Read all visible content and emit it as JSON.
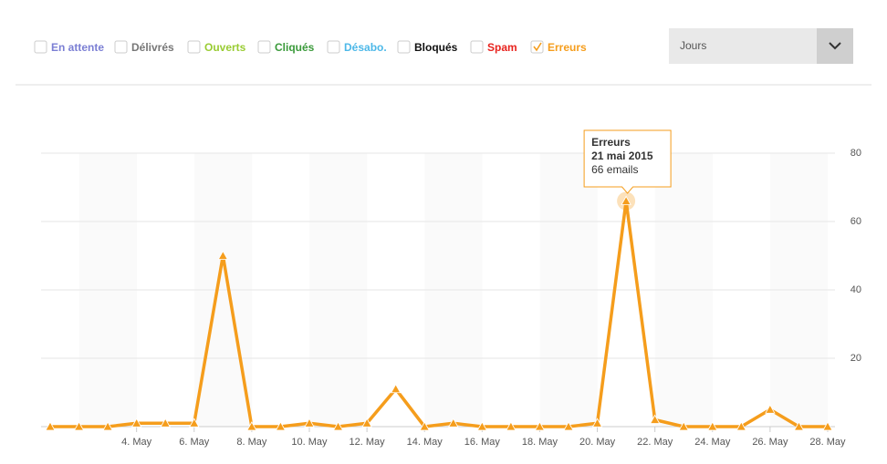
{
  "filters": [
    {
      "label": "En attente",
      "color": "#7b7fd4",
      "checked": false
    },
    {
      "label": "Délivrés",
      "color": "#777777",
      "checked": false
    },
    {
      "label": "Ouverts",
      "color": "#99cc33",
      "checked": false
    },
    {
      "label": "Cliqués",
      "color": "#3a9a3a",
      "checked": false
    },
    {
      "label": "Désabo.",
      "color": "#4db8e8",
      "checked": false
    },
    {
      "label": "Bloqués",
      "color": "#111111",
      "checked": false
    },
    {
      "label": "Spam",
      "color": "#e8231e",
      "checked": false
    },
    {
      "label": "Erreurs",
      "color": "#f59d1c",
      "checked": true
    }
  ],
  "dropdown": {
    "label": "Jours"
  },
  "chart_data": {
    "type": "line",
    "categories": [
      null,
      null,
      null,
      "4. May",
      null,
      "6. May",
      null,
      "8. May",
      null,
      "10. May",
      null,
      "12. May",
      null,
      "14. May",
      null,
      "16. May",
      null,
      "18. May",
      null,
      "20. May",
      null,
      "22. May",
      null,
      "24. May",
      null,
      "26. May",
      null,
      "28. May"
    ],
    "series": [
      {
        "name": "Erreurs",
        "color": "#f59d1c",
        "values": [
          0,
          0,
          0,
          1,
          1,
          1,
          50,
          0,
          0,
          1,
          0,
          1,
          11,
          0,
          1,
          0,
          0,
          0,
          0,
          1,
          66,
          2,
          0,
          0,
          0,
          5,
          0,
          0
        ]
      }
    ],
    "ylim": [
      0,
      80
    ],
    "yticks": [
      20,
      40,
      60,
      80
    ],
    "grid": true,
    "tooltip": {
      "index": 20,
      "title": "Erreurs",
      "date": "21 mai 2015",
      "text": "66 emails"
    }
  }
}
